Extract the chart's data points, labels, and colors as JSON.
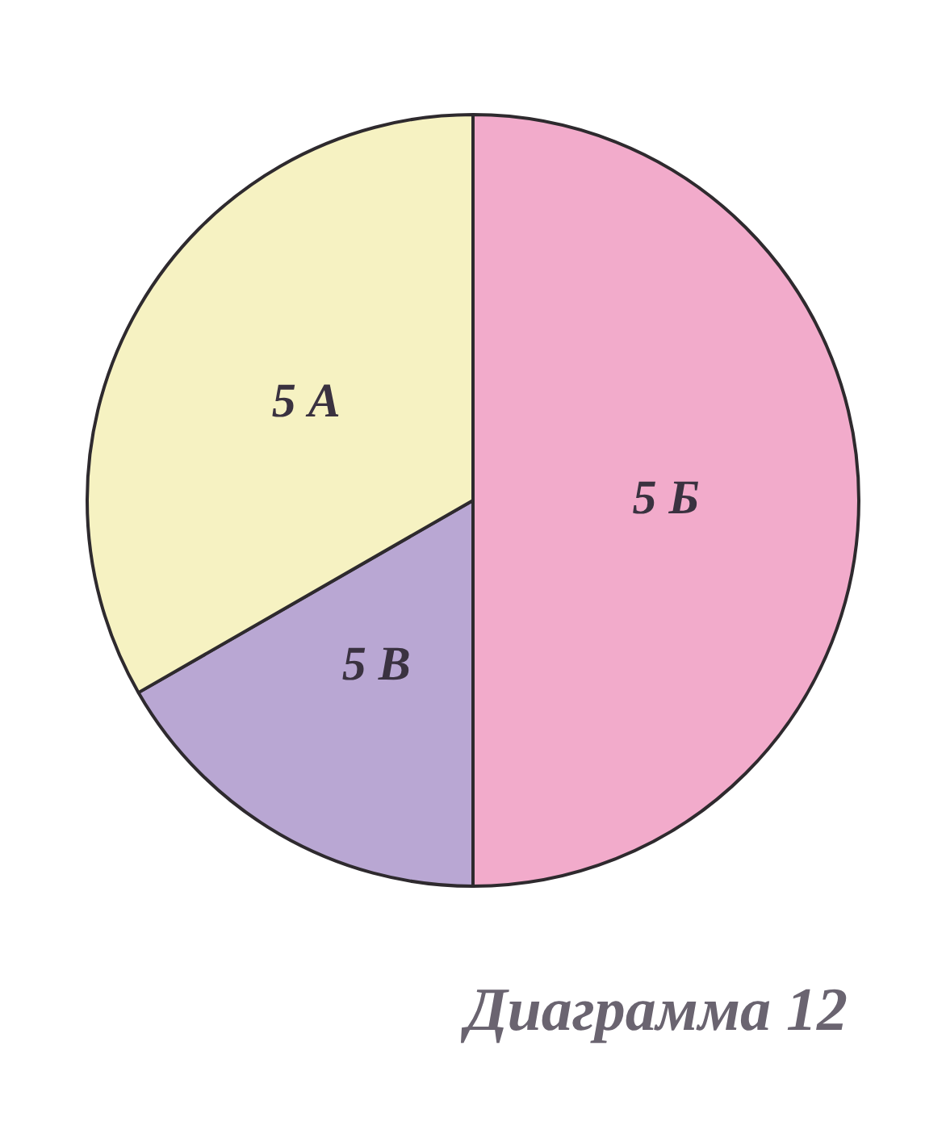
{
  "chart_data": {
    "type": "pie",
    "categories": [
      "5 Б",
      "5 В",
      "5 А"
    ],
    "values": [
      50,
      16.7,
      33.3
    ],
    "colors": [
      "#f2abcb",
      "#b9a7d3",
      "#f6f2c2"
    ],
    "legend": false,
    "annotations": [
      "Диаграмма 12"
    ]
  }
}
